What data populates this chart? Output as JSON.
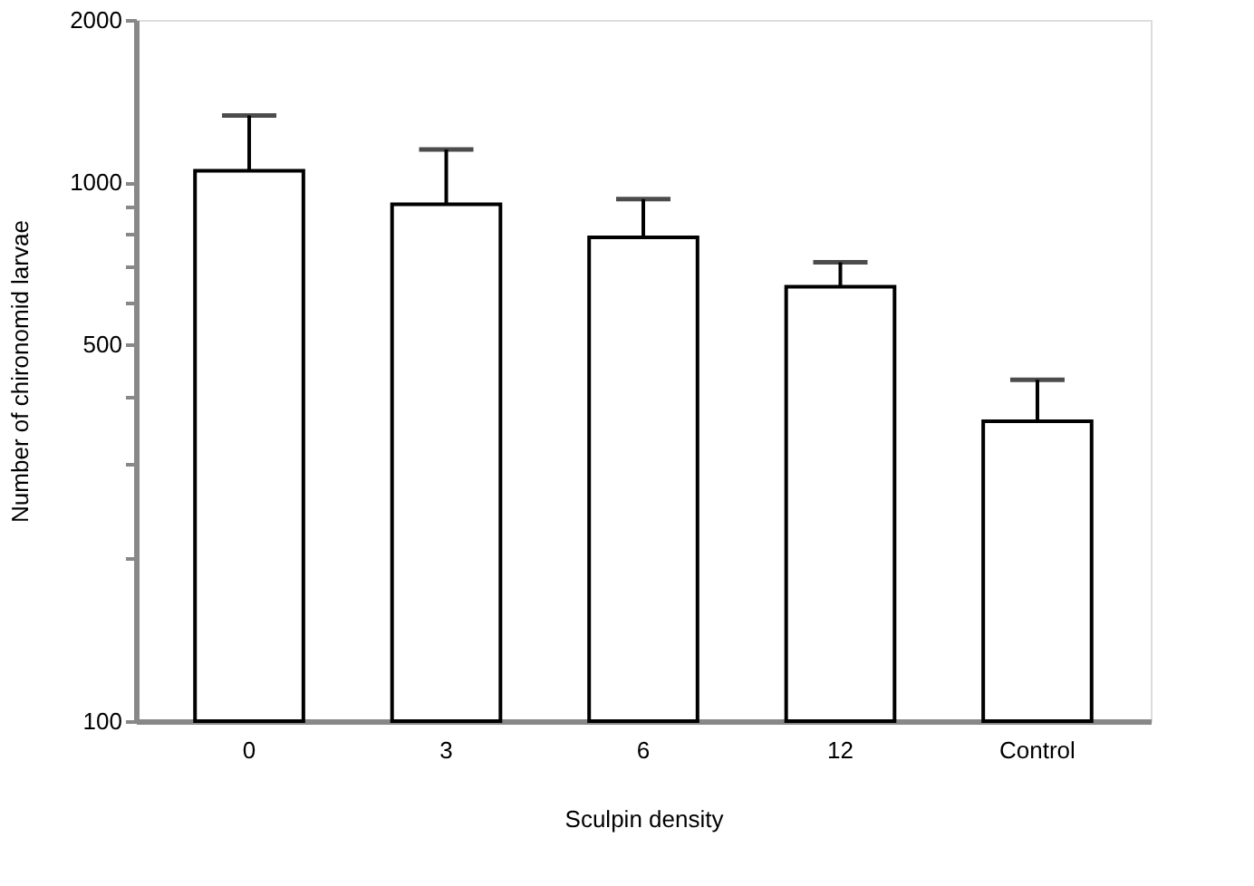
{
  "chart_data": {
    "type": "bar",
    "xlabel": "Sculpin density",
    "ylabel": "Number of chironomid larvae",
    "categories": [
      "0",
      "3",
      "6",
      "12",
      "Control"
    ],
    "values": [
      1050,
      910,
      790,
      640,
      360
    ],
    "errors": [
      [
        1050,
        1330
      ],
      [
        910,
        1150
      ],
      [
        790,
        930
      ],
      [
        640,
        710
      ],
      [
        360,
        430
      ]
    ],
    "color": "#ffffff",
    "log": "y",
    "ylim": [
      100,
      2000
    ],
    "yticks": [
      100,
      {
        "value": 200,
        "label": null
      },
      {
        "value": 300,
        "label": null
      },
      {
        "value": 400,
        "label": null
      },
      500,
      {
        "value": 600,
        "label": null
      },
      {
        "value": 700,
        "label": null
      },
      {
        "value": 800,
        "label": null
      },
      {
        "value": 900,
        "label": null
      },
      1000,
      2000
    ],
    "grid": false
  }
}
